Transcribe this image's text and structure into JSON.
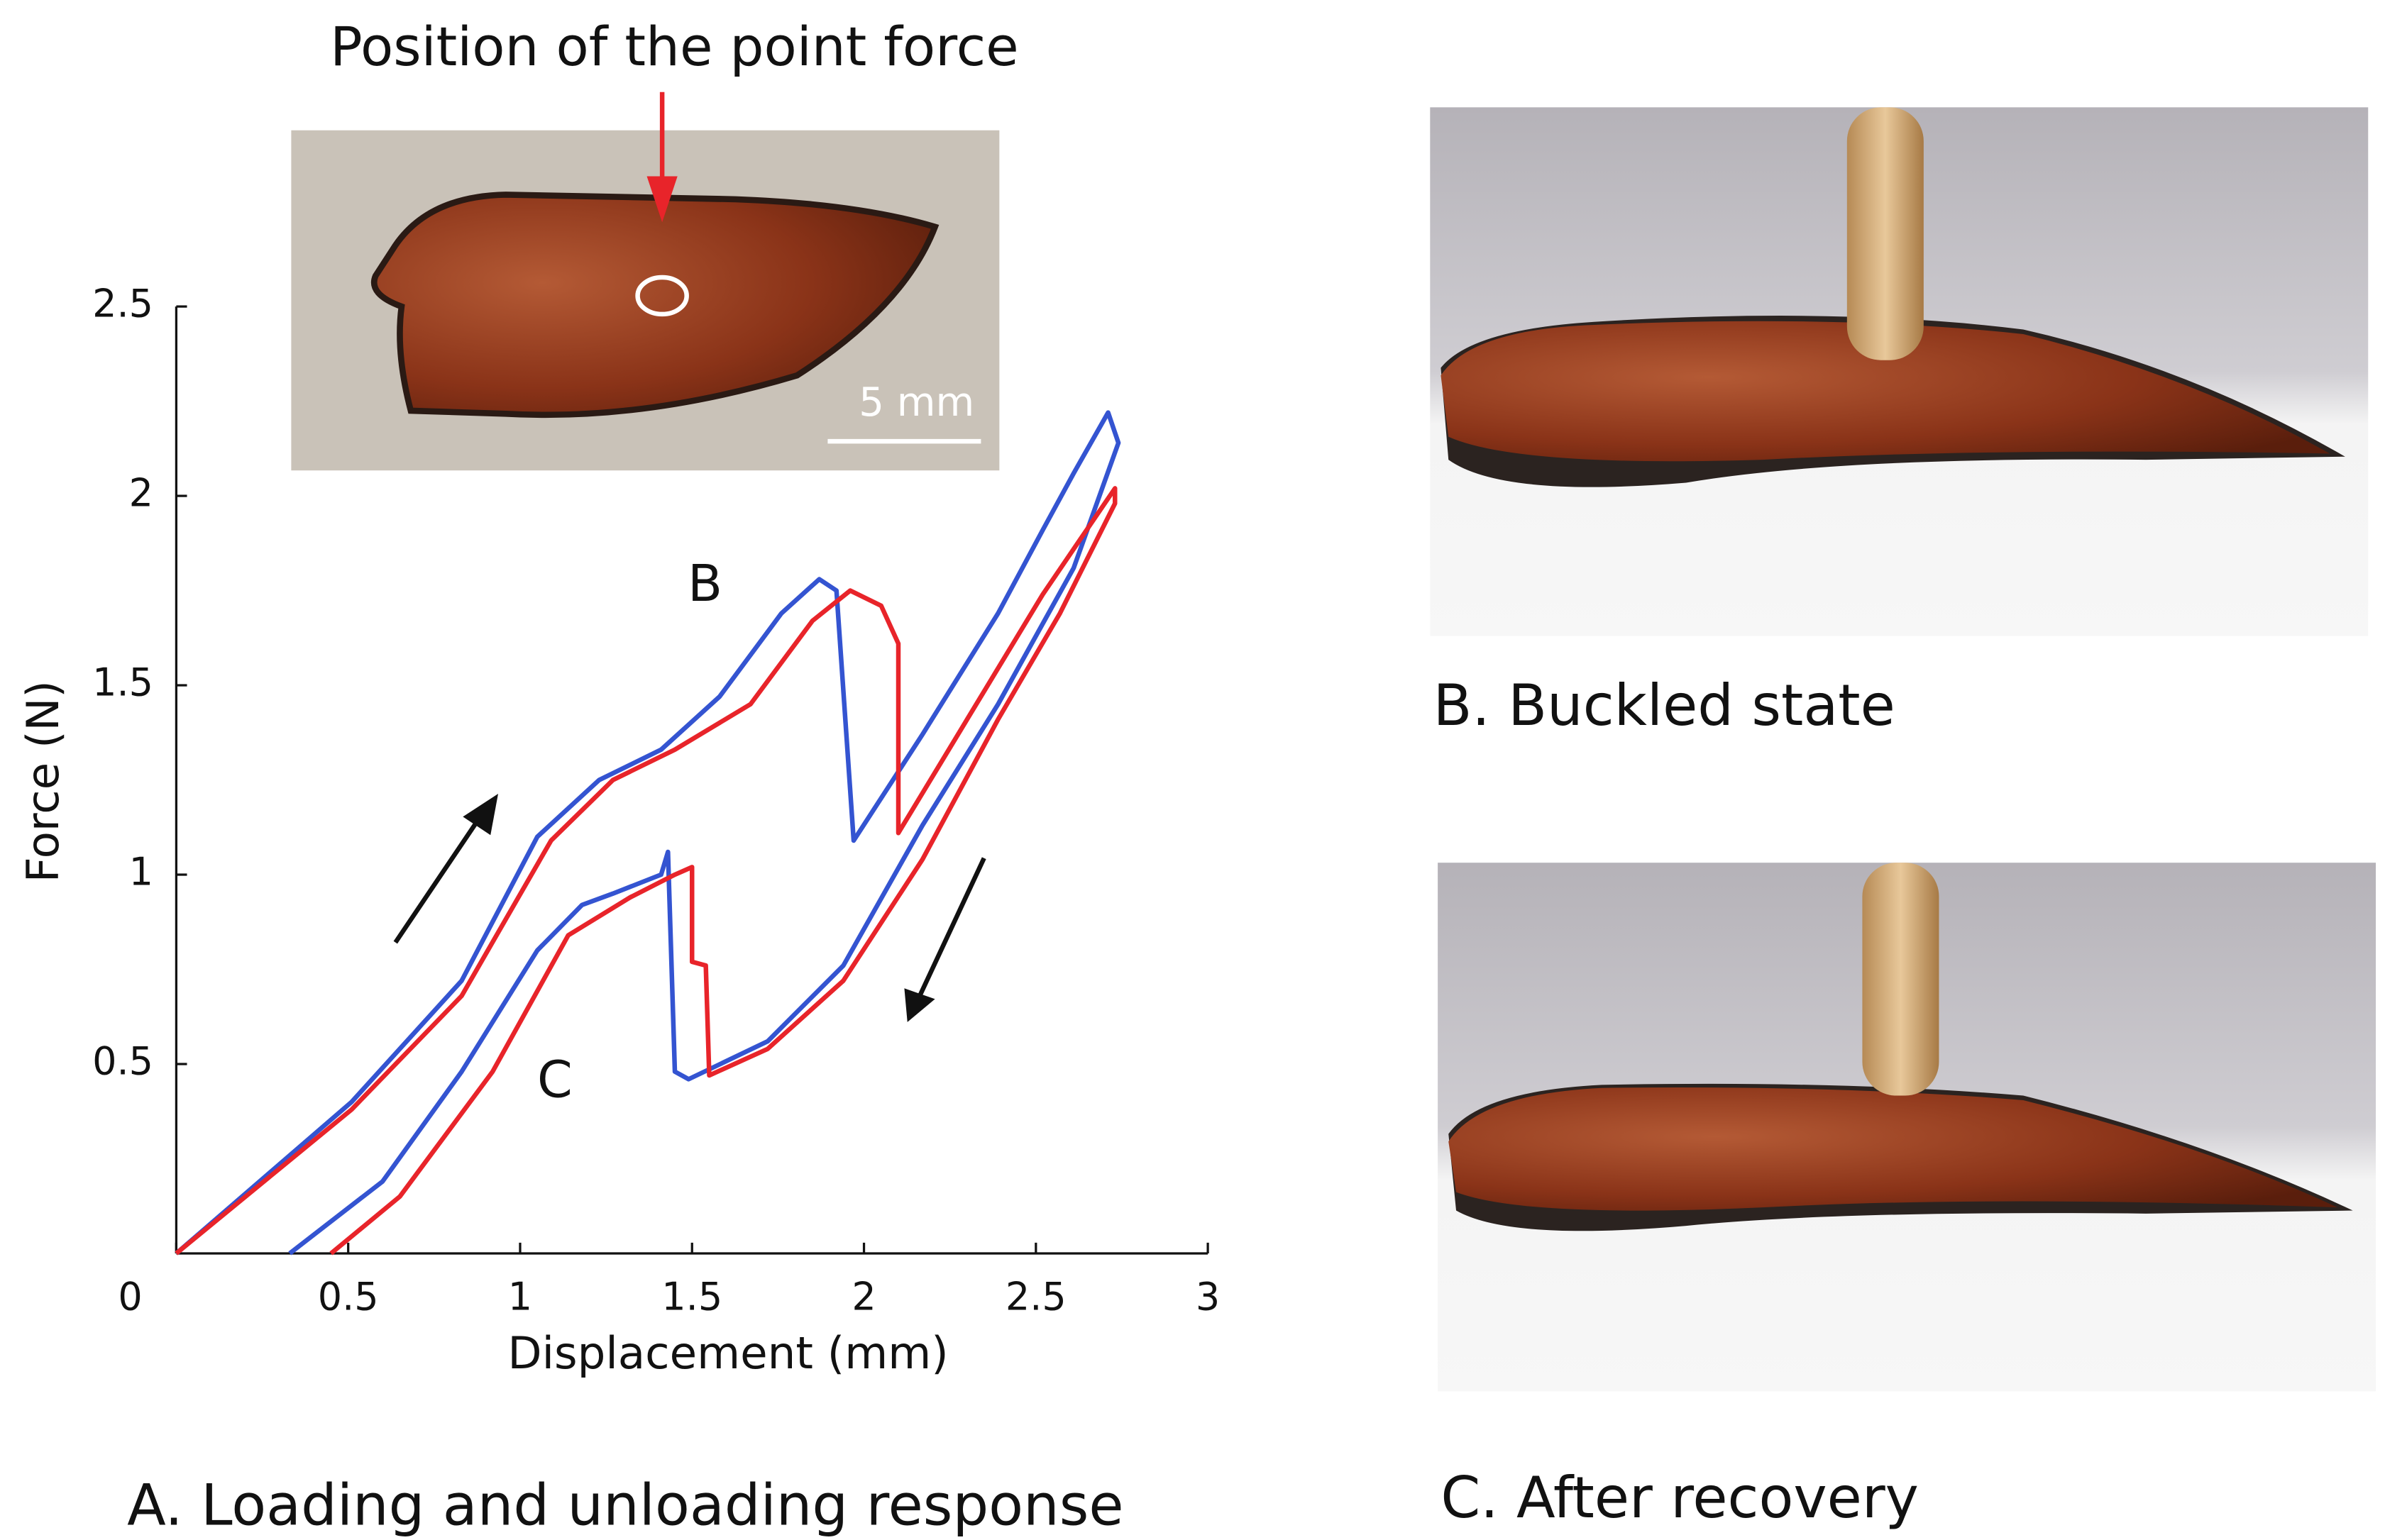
{
  "chart_data": {
    "type": "line",
    "annotation": "Position of the point force",
    "scale_bar_label": "5 mm",
    "point_labels": [
      "B",
      "C"
    ],
    "xlabel": "Displacement (mm)",
    "ylabel": "Force (N)",
    "xlim": [
      0,
      3
    ],
    "ylim": [
      0,
      2.5
    ],
    "xticks": [
      0,
      0.5,
      1,
      1.5,
      2,
      2.5,
      3
    ],
    "yticks": [
      0.5,
      1,
      1.5,
      2,
      2.5
    ],
    "series": [
      {
        "color": "#3454d1",
        "x": [
          0,
          0.51,
          0.83,
          1.05,
          1.23,
          1.41,
          1.58,
          1.76,
          1.87,
          1.92,
          1.97,
          2.17,
          2.39,
          2.52,
          2.61,
          2.71,
          2.74,
          2.61,
          2.39,
          2.17,
          1.94,
          1.72,
          1.49,
          1.45,
          1.43,
          1.41,
          1.27,
          1.18,
          1.05,
          0.83,
          0.6,
          0.33
        ],
        "values": [
          0,
          0.4,
          0.72,
          1.1,
          1.25,
          1.33,
          1.47,
          1.69,
          1.78,
          1.75,
          1.09,
          1.37,
          1.69,
          1.91,
          2.06,
          2.22,
          2.14,
          1.81,
          1.45,
          1.13,
          0.76,
          0.56,
          0.46,
          0.48,
          1.06,
          1.0,
          0.95,
          0.92,
          0.8,
          0.48,
          0.19,
          0
        ]
      },
      {
        "color": "#e8242a",
        "x": [
          0,
          0.51,
          0.83,
          1.09,
          1.27,
          1.45,
          1.67,
          1.85,
          1.96,
          2.05,
          2.1,
          2.1,
          2.3,
          2.52,
          2.73,
          2.73,
          2.57,
          2.39,
          2.17,
          1.94,
          1.72,
          1.55,
          1.54,
          1.5,
          1.5,
          1.45,
          1.32,
          1.14,
          0.92,
          0.65,
          0.45
        ],
        "values": [
          0,
          0.38,
          0.68,
          1.09,
          1.25,
          1.33,
          1.45,
          1.67,
          1.75,
          1.71,
          1.61,
          1.11,
          1.41,
          1.74,
          2.02,
          1.98,
          1.69,
          1.41,
          1.04,
          0.72,
          0.54,
          0.47,
          0.76,
          0.77,
          1.02,
          1.0,
          0.94,
          0.84,
          0.48,
          0.15,
          0
        ]
      }
    ]
  },
  "captions": [
    "A. Loading and unloading response",
    "B. Buckled state",
    "C. After recovery"
  ]
}
